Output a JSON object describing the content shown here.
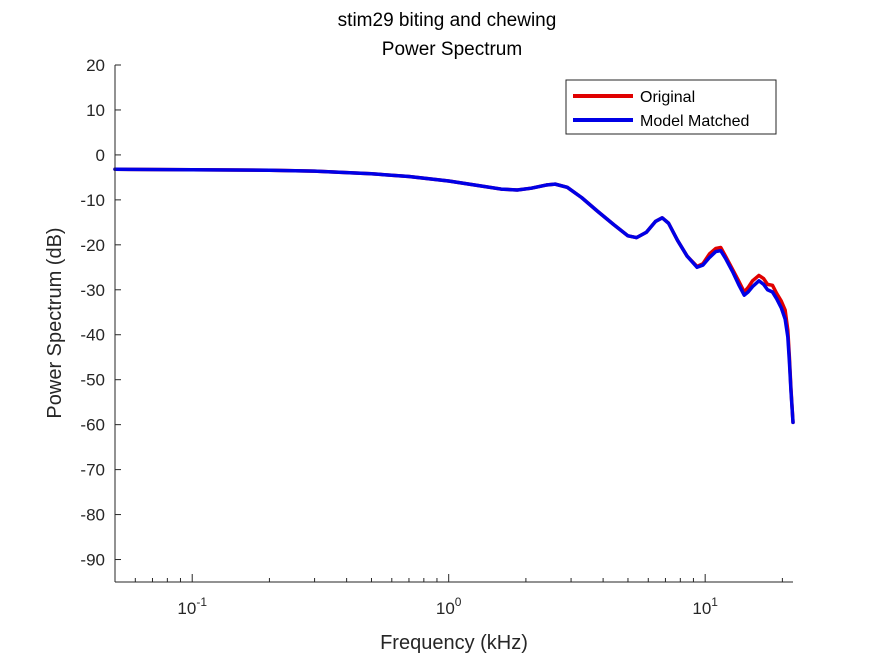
{
  "chart_data": {
    "type": "line",
    "title": [
      "stim29 biting and chewing",
      "Power Spectrum"
    ],
    "xlabel": "Frequency (kHz)",
    "ylabel": "Power Spectrum (dB)",
    "xscale": "log",
    "xlim": [
      0.05,
      22
    ],
    "ylim": [
      -95,
      20
    ],
    "yticks": [
      20,
      10,
      0,
      -10,
      -20,
      -30,
      -40,
      -50,
      -60,
      -70,
      -80,
      -90
    ],
    "xticks": [
      {
        "value": 0.1,
        "base": "10",
        "exp": "-1"
      },
      {
        "value": 1,
        "base": "10",
        "exp": "0"
      },
      {
        "value": 10,
        "base": "10",
        "exp": "1"
      }
    ],
    "grid": false,
    "legend_position": "top-right",
    "series": [
      {
        "name": "Original",
        "color": "#e00000",
        "points": [
          [
            0.05,
            -3.2
          ],
          [
            0.1,
            -3.3
          ],
          [
            0.2,
            -3.4
          ],
          [
            0.3,
            -3.6
          ],
          [
            0.5,
            -4.2
          ],
          [
            0.7,
            -4.8
          ],
          [
            1.0,
            -5.8
          ],
          [
            1.3,
            -6.8
          ],
          [
            1.6,
            -7.6
          ],
          [
            1.85,
            -7.8
          ],
          [
            2.1,
            -7.4
          ],
          [
            2.4,
            -6.7
          ],
          [
            2.6,
            -6.5
          ],
          [
            2.9,
            -7.2
          ],
          [
            3.3,
            -9.5
          ],
          [
            3.8,
            -12.5
          ],
          [
            4.4,
            -15.5
          ],
          [
            5.0,
            -18.0
          ],
          [
            5.4,
            -18.4
          ],
          [
            5.9,
            -17.2
          ],
          [
            6.4,
            -14.8
          ],
          [
            6.8,
            -14.0
          ],
          [
            7.2,
            -15.2
          ],
          [
            7.8,
            -19.0
          ],
          [
            8.5,
            -22.5
          ],
          [
            9.3,
            -24.8
          ],
          [
            9.8,
            -24.2
          ],
          [
            10.4,
            -22.0
          ],
          [
            11.0,
            -20.8
          ],
          [
            11.5,
            -20.6
          ],
          [
            12.0,
            -22.5
          ],
          [
            12.8,
            -25.5
          ],
          [
            13.5,
            -28.0
          ],
          [
            14.2,
            -30.5
          ],
          [
            14.7,
            -29.5
          ],
          [
            15.3,
            -28.0
          ],
          [
            16.2,
            -26.8
          ],
          [
            16.9,
            -27.5
          ],
          [
            17.5,
            -28.8
          ],
          [
            18.3,
            -29.0
          ],
          [
            19.0,
            -30.8
          ],
          [
            19.8,
            -32.5
          ],
          [
            20.5,
            -34.5
          ],
          [
            21.0,
            -39.0
          ],
          [
            21.3,
            -45.0
          ],
          [
            21.6,
            -52.0
          ],
          [
            22.0,
            -59.5
          ]
        ]
      },
      {
        "name": "Model Matched",
        "color": "#0000e6",
        "points": [
          [
            0.05,
            -3.2
          ],
          [
            0.1,
            -3.3
          ],
          [
            0.2,
            -3.4
          ],
          [
            0.3,
            -3.6
          ],
          [
            0.5,
            -4.2
          ],
          [
            0.7,
            -4.8
          ],
          [
            1.0,
            -5.8
          ],
          [
            1.3,
            -6.8
          ],
          [
            1.6,
            -7.6
          ],
          [
            1.85,
            -7.8
          ],
          [
            2.1,
            -7.4
          ],
          [
            2.4,
            -6.7
          ],
          [
            2.6,
            -6.5
          ],
          [
            2.9,
            -7.2
          ],
          [
            3.3,
            -9.5
          ],
          [
            3.8,
            -12.5
          ],
          [
            4.4,
            -15.5
          ],
          [
            5.0,
            -18.0
          ],
          [
            5.4,
            -18.4
          ],
          [
            5.9,
            -17.2
          ],
          [
            6.4,
            -14.8
          ],
          [
            6.8,
            -14.0
          ],
          [
            7.2,
            -15.2
          ],
          [
            7.8,
            -19.0
          ],
          [
            8.5,
            -22.5
          ],
          [
            9.3,
            -25.0
          ],
          [
            9.8,
            -24.5
          ],
          [
            10.4,
            -22.8
          ],
          [
            11.0,
            -21.5
          ],
          [
            11.5,
            -21.3
          ],
          [
            12.0,
            -23.0
          ],
          [
            12.8,
            -26.0
          ],
          [
            13.5,
            -28.8
          ],
          [
            14.2,
            -31.2
          ],
          [
            14.7,
            -30.5
          ],
          [
            15.3,
            -29.3
          ],
          [
            16.2,
            -28.0
          ],
          [
            16.9,
            -28.8
          ],
          [
            17.5,
            -30.0
          ],
          [
            18.3,
            -30.5
          ],
          [
            19.0,
            -32.0
          ],
          [
            19.8,
            -34.0
          ],
          [
            20.5,
            -36.5
          ],
          [
            21.0,
            -40.5
          ],
          [
            21.3,
            -46.0
          ],
          [
            21.6,
            -52.5
          ],
          [
            22.0,
            -59.5
          ]
        ]
      }
    ]
  }
}
